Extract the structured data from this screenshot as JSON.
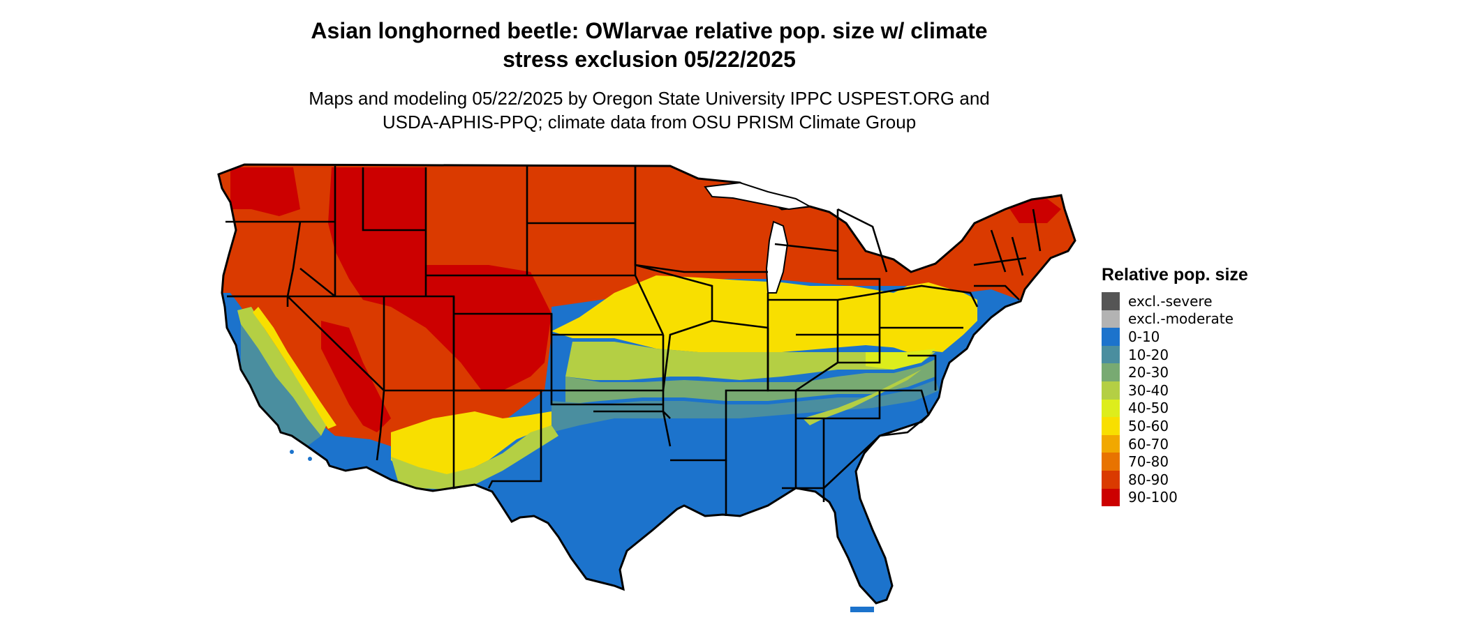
{
  "title_line1": "Asian longhorned beetle: OWlarvae relative pop. size w/ climate",
  "title_line2": "stress exclusion 05/22/2025",
  "subtitle_line1": "Maps and modeling 05/22/2025 by Oregon State University IPPC USPEST.ORG and",
  "subtitle_line2": "USDA-APHIS-PPQ; climate data from OSU PRISM Climate Group",
  "legend": {
    "title": "Relative pop. size",
    "items": [
      {
        "label": "excl.-severe",
        "color": "#555555"
      },
      {
        "label": "excl.-moderate",
        "color": "#b3b3b3"
      },
      {
        "label": "0-10",
        "color": "#1c73cc"
      },
      {
        "label": "10-20",
        "color": "#4a8e9f"
      },
      {
        "label": "20-30",
        "color": "#78aa72"
      },
      {
        "label": "30-40",
        "color": "#b4cf44"
      },
      {
        "label": "40-50",
        "color": "#dded1c"
      },
      {
        "label": "50-60",
        "color": "#f8df00"
      },
      {
        "label": "60-70",
        "color": "#f1a800"
      },
      {
        "label": "70-80",
        "color": "#e87300"
      },
      {
        "label": "80-90",
        "color": "#da3a00"
      },
      {
        "label": "90-100",
        "color": "#cc0000"
      }
    ]
  },
  "map_colors": {
    "c0_10": "#1c73cc",
    "c10_20": "#4a8e9f",
    "c20_30": "#78aa72",
    "c30_40": "#b4cf44",
    "c40_50": "#dded1c",
    "c50_60": "#f8df00",
    "c70_80": "#e87300",
    "c80_90": "#da3a00",
    "c90_100": "#cc0000",
    "border": "#000000"
  }
}
